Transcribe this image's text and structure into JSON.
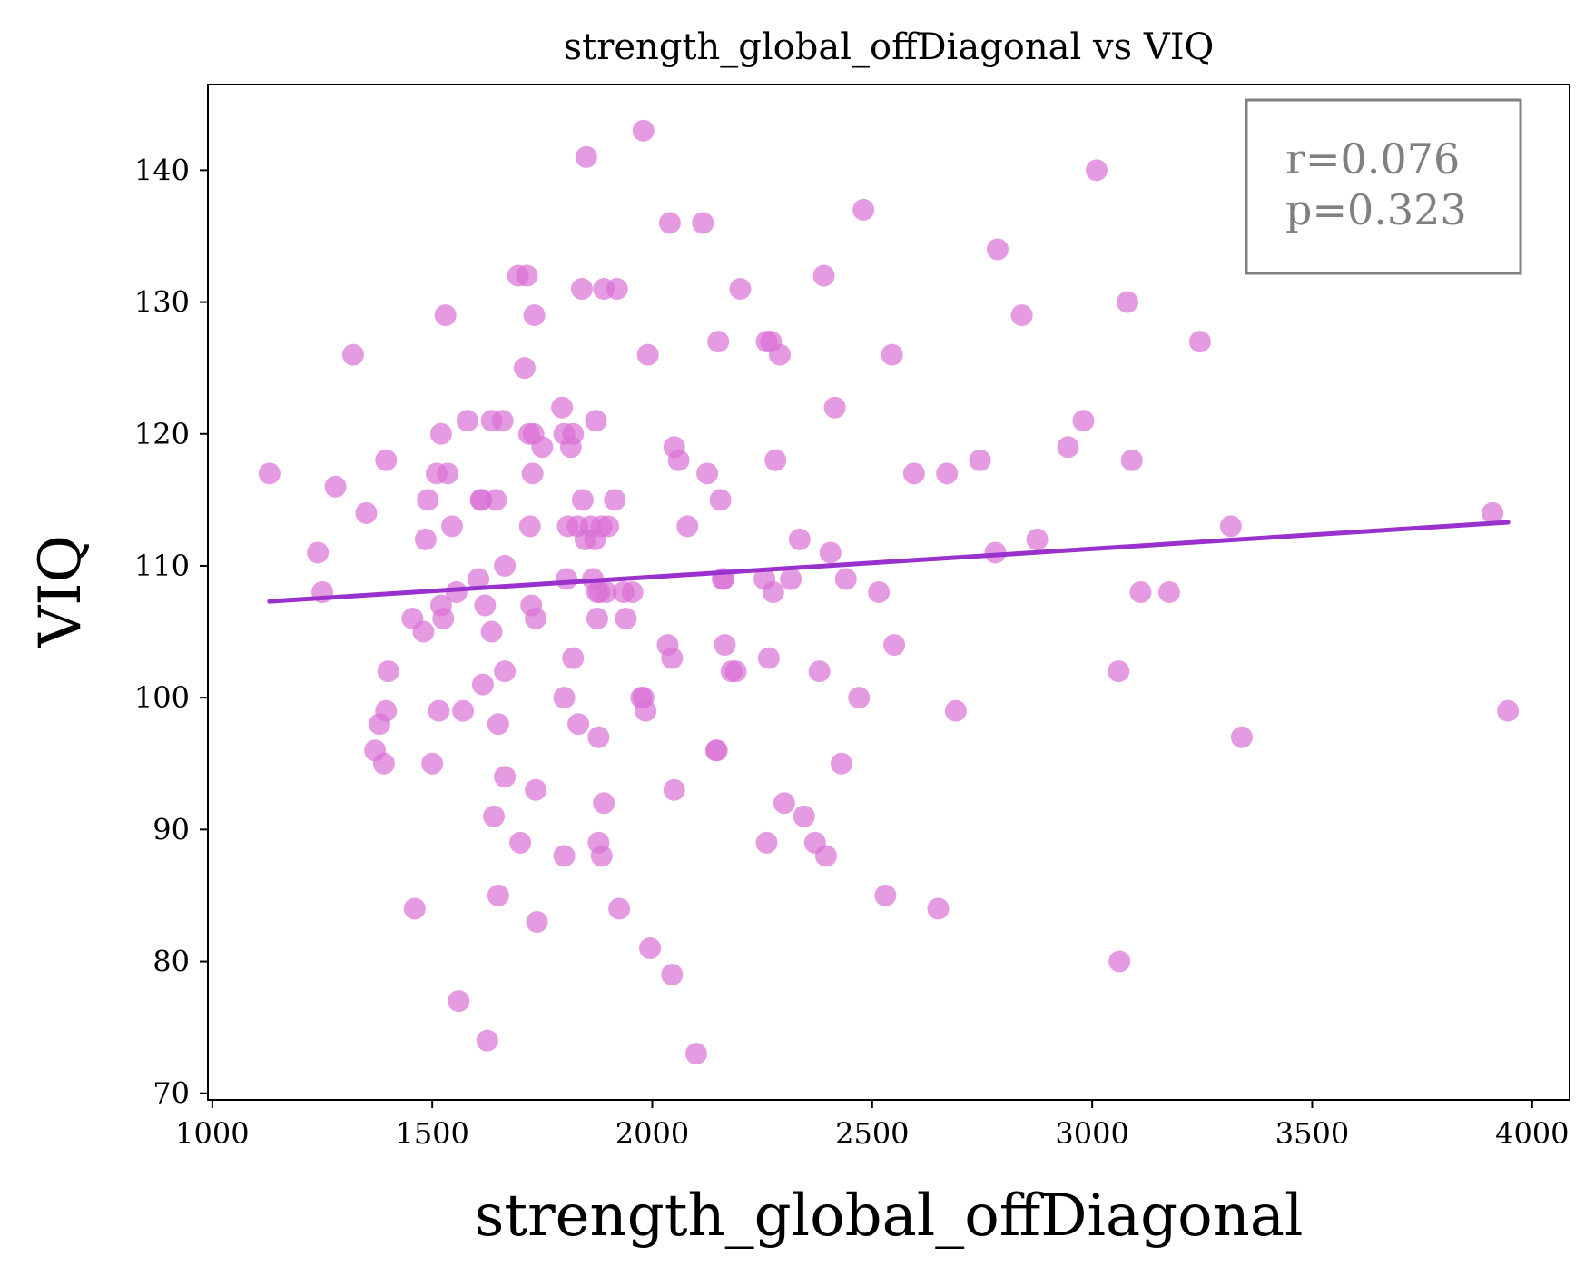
{
  "chart_data": {
    "type": "scatter",
    "title": "strength_global_offDiagonal vs VIQ",
    "xlabel": "strength_global_offDiagonal",
    "ylabel": "VIQ",
    "xlim": [
      990,
      4085
    ],
    "ylim": [
      69.5,
      146.5
    ],
    "xticks": [
      1000,
      1500,
      2000,
      2500,
      3000,
      3500,
      4000
    ],
    "yticks": [
      70,
      80,
      90,
      100,
      110,
      120,
      130,
      140
    ],
    "grid": false,
    "point_color": "#da70d6",
    "line_color": "#9932cc",
    "annotation": {
      "r": "r=0.076",
      "p": "p=0.323",
      "border_color": "#808080"
    },
    "fit_line": {
      "x": [
        1130,
        3945
      ],
      "y": [
        107.3,
        113.3
      ]
    },
    "points": [
      [
        1130,
        117
      ],
      [
        1240,
        111
      ],
      [
        1250,
        108
      ],
      [
        1280,
        116
      ],
      [
        1320,
        126
      ],
      [
        1350,
        114
      ],
      [
        1370,
        96
      ],
      [
        1380,
        98
      ],
      [
        1390,
        95
      ],
      [
        1395,
        99
      ],
      [
        1400,
        102
      ],
      [
        1395,
        118
      ],
      [
        1455,
        106
      ],
      [
        1460,
        84
      ],
      [
        1480,
        105
      ],
      [
        1485,
        112
      ],
      [
        1490,
        115
      ],
      [
        1500,
        95
      ],
      [
        1510,
        117
      ],
      [
        1515,
        99
      ],
      [
        1520,
        120
      ],
      [
        1520,
        107
      ],
      [
        1525,
        106
      ],
      [
        1535,
        117
      ],
      [
        1530,
        129
      ],
      [
        1545,
        113
      ],
      [
        1555,
        108
      ],
      [
        1560,
        77
      ],
      [
        1570,
        99
      ],
      [
        1580,
        121
      ],
      [
        1605,
        109
      ],
      [
        1610,
        115
      ],
      [
        1612,
        115
      ],
      [
        1615,
        101
      ],
      [
        1620,
        107
      ],
      [
        1625,
        74
      ],
      [
        1635,
        121
      ],
      [
        1635,
        105
      ],
      [
        1640,
        91
      ],
      [
        1645,
        115
      ],
      [
        1650,
        98
      ],
      [
        1650,
        85
      ],
      [
        1660,
        121
      ],
      [
        1665,
        110
      ],
      [
        1665,
        102
      ],
      [
        1665,
        94
      ],
      [
        1695,
        132
      ],
      [
        1700,
        89
      ],
      [
        1710,
        125
      ],
      [
        1715,
        132
      ],
      [
        1720,
        120
      ],
      [
        1722,
        113
      ],
      [
        1725,
        107
      ],
      [
        1728,
        117
      ],
      [
        1730,
        120
      ],
      [
        1732,
        129
      ],
      [
        1735,
        106
      ],
      [
        1735,
        93
      ],
      [
        1738,
        83
      ],
      [
        1750,
        119
      ],
      [
        1795,
        122
      ],
      [
        1800,
        120
      ],
      [
        1800,
        100
      ],
      [
        1800,
        88
      ],
      [
        1805,
        109
      ],
      [
        1808,
        113
      ],
      [
        1815,
        119
      ],
      [
        1820,
        120
      ],
      [
        1820,
        103
      ],
      [
        1830,
        113
      ],
      [
        1832,
        98
      ],
      [
        1840,
        131
      ],
      [
        1842,
        115
      ],
      [
        1848,
        112
      ],
      [
        1850,
        141
      ],
      [
        1860,
        113
      ],
      [
        1865,
        109
      ],
      [
        1870,
        112
      ],
      [
        1872,
        121
      ],
      [
        1875,
        108
      ],
      [
        1875,
        106
      ],
      [
        1878,
        97
      ],
      [
        1878,
        89
      ],
      [
        1880,
        108
      ],
      [
        1885,
        113
      ],
      [
        1885,
        88
      ],
      [
        1890,
        131
      ],
      [
        1890,
        92
      ],
      [
        1895,
        108
      ],
      [
        1900,
        113
      ],
      [
        1915,
        115
      ],
      [
        1920,
        131
      ],
      [
        1925,
        84
      ],
      [
        1935,
        108
      ],
      [
        1940,
        106
      ],
      [
        1955,
        108
      ],
      [
        1975,
        100
      ],
      [
        1980,
        100
      ],
      [
        1980,
        143
      ],
      [
        1985,
        99
      ],
      [
        1990,
        126
      ],
      [
        1995,
        81
      ],
      [
        2035,
        104
      ],
      [
        2040,
        136
      ],
      [
        2045,
        103
      ],
      [
        2045,
        79
      ],
      [
        2050,
        119
      ],
      [
        2050,
        93
      ],
      [
        2060,
        118
      ],
      [
        2080,
        113
      ],
      [
        2100,
        73
      ],
      [
        2115,
        136
      ],
      [
        2125,
        117
      ],
      [
        2145,
        96
      ],
      [
        2147,
        96
      ],
      [
        2150,
        127
      ],
      [
        2155,
        115
      ],
      [
        2160,
        109
      ],
      [
        2162,
        109
      ],
      [
        2165,
        104
      ],
      [
        2180,
        102
      ],
      [
        2190,
        102
      ],
      [
        2200,
        131
      ],
      [
        2255,
        109
      ],
      [
        2260,
        127
      ],
      [
        2260,
        89
      ],
      [
        2265,
        103
      ],
      [
        2270,
        127
      ],
      [
        2275,
        108
      ],
      [
        2280,
        118
      ],
      [
        2290,
        126
      ],
      [
        2300,
        92
      ],
      [
        2315,
        109
      ],
      [
        2335,
        112
      ],
      [
        2345,
        91
      ],
      [
        2370,
        89
      ],
      [
        2380,
        102
      ],
      [
        2390,
        132
      ],
      [
        2395,
        88
      ],
      [
        2405,
        111
      ],
      [
        2415,
        122
      ],
      [
        2430,
        95
      ],
      [
        2440,
        109
      ],
      [
        2470,
        100
      ],
      [
        2480,
        137
      ],
      [
        2515,
        108
      ],
      [
        2530,
        85
      ],
      [
        2545,
        126
      ],
      [
        2550,
        104
      ],
      [
        2595,
        117
      ],
      [
        2650,
        84
      ],
      [
        2670,
        117
      ],
      [
        2690,
        99
      ],
      [
        2745,
        118
      ],
      [
        2780,
        111
      ],
      [
        2785,
        134
      ],
      [
        2840,
        129
      ],
      [
        2875,
        112
      ],
      [
        2945,
        119
      ],
      [
        2980,
        121
      ],
      [
        3010,
        140
      ],
      [
        3060,
        102
      ],
      [
        3062,
        80
      ],
      [
        3080,
        130
      ],
      [
        3090,
        118
      ],
      [
        3110,
        108
      ],
      [
        3175,
        108
      ],
      [
        3245,
        127
      ],
      [
        3315,
        113
      ],
      [
        3340,
        97
      ],
      [
        3910,
        114
      ],
      [
        3945,
        99
      ]
    ]
  }
}
